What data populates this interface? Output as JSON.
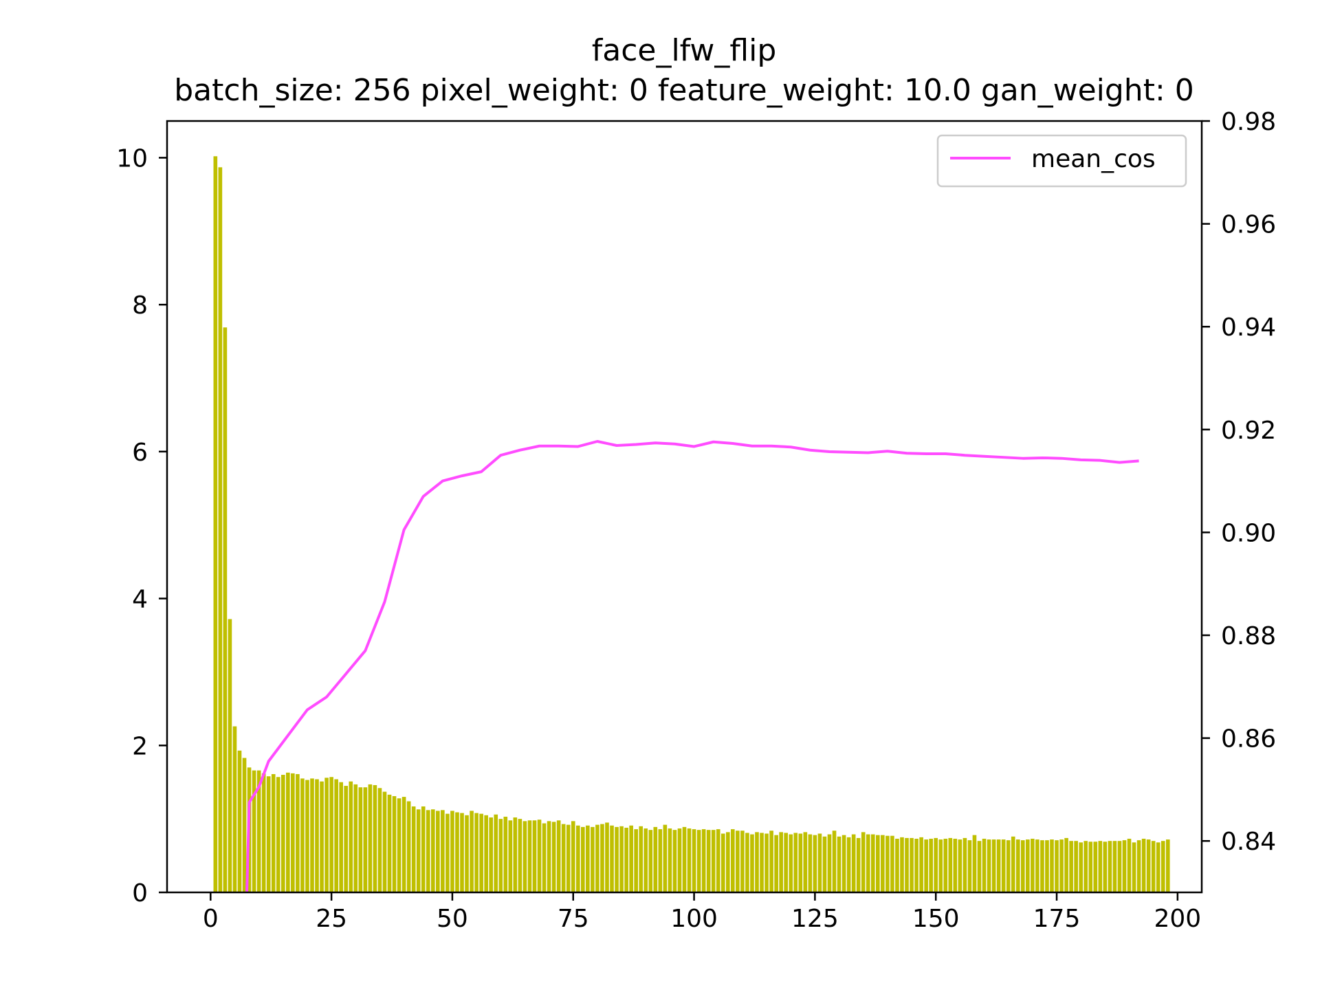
{
  "chart_data": {
    "type": "bar",
    "title": "face_lfw_flip",
    "subtitle": "batch_size: 256 pixel_weight: 0 feature_weight: 10.0 gan_weight: 0",
    "xlabel": "",
    "ylabel": "",
    "xlim": [
      -9,
      205
    ],
    "ylim_left": [
      0,
      10.5
    ],
    "ylim_right": [
      0.83,
      0.98
    ],
    "x_ticks": [
      0,
      25,
      50,
      75,
      100,
      125,
      150,
      175,
      200
    ],
    "y_ticks_left": [
      0,
      2,
      4,
      6,
      8,
      10
    ],
    "y_ticks_right": [
      0.84,
      0.86,
      0.88,
      0.9,
      0.92,
      0.94,
      0.96,
      0.98
    ],
    "grid": false,
    "legend_position": "top-right",
    "bar_series": {
      "axis": "left",
      "color": "#bfbf00",
      "x_start": 1,
      "x_step": 1,
      "values": [
        10.02,
        9.87,
        7.69,
        3.72,
        2.26,
        1.93,
        1.83,
        1.7,
        1.66,
        1.66,
        1.62,
        1.58,
        1.61,
        1.57,
        1.6,
        1.63,
        1.62,
        1.61,
        1.55,
        1.53,
        1.55,
        1.54,
        1.51,
        1.56,
        1.57,
        1.54,
        1.5,
        1.45,
        1.51,
        1.47,
        1.43,
        1.43,
        1.47,
        1.46,
        1.42,
        1.37,
        1.33,
        1.31,
        1.28,
        1.3,
        1.24,
        1.17,
        1.13,
        1.17,
        1.12,
        1.13,
        1.11,
        1.12,
        1.07,
        1.11,
        1.09,
        1.08,
        1.05,
        1.11,
        1.08,
        1.07,
        1.05,
        1.02,
        1.06,
        1.0,
        1.03,
        0.98,
        1.02,
        1.0,
        0.97,
        0.98,
        0.98,
        0.99,
        0.94,
        0.97,
        0.96,
        0.98,
        0.93,
        0.92,
        0.97,
        0.91,
        0.89,
        0.91,
        0.89,
        0.92,
        0.93,
        0.95,
        0.91,
        0.89,
        0.9,
        0.88,
        0.91,
        0.86,
        0.9,
        0.87,
        0.85,
        0.89,
        0.86,
        0.92,
        0.87,
        0.85,
        0.87,
        0.89,
        0.87,
        0.86,
        0.85,
        0.86,
        0.85,
        0.85,
        0.86,
        0.8,
        0.82,
        0.86,
        0.84,
        0.84,
        0.81,
        0.79,
        0.82,
        0.81,
        0.8,
        0.84,
        0.78,
        0.82,
        0.81,
        0.79,
        0.81,
        0.8,
        0.82,
        0.79,
        0.78,
        0.8,
        0.76,
        0.79,
        0.84,
        0.76,
        0.78,
        0.75,
        0.79,
        0.74,
        0.82,
        0.79,
        0.79,
        0.78,
        0.78,
        0.77,
        0.77,
        0.73,
        0.75,
        0.74,
        0.74,
        0.73,
        0.75,
        0.72,
        0.73,
        0.74,
        0.72,
        0.73,
        0.74,
        0.73,
        0.72,
        0.74,
        0.71,
        0.78,
        0.7,
        0.73,
        0.72,
        0.72,
        0.72,
        0.72,
        0.71,
        0.76,
        0.72,
        0.71,
        0.72,
        0.73,
        0.72,
        0.71,
        0.71,
        0.72,
        0.71,
        0.72,
        0.74,
        0.7,
        0.7,
        0.68,
        0.7,
        0.69,
        0.69,
        0.7,
        0.69,
        0.7,
        0.7,
        0.7,
        0.71,
        0.73,
        0.68,
        0.71,
        0.73,
        0.72,
        0.7,
        0.68,
        0.7,
        0.72
      ]
    },
    "series": [
      {
        "name": "mean_cos",
        "axis": "right",
        "color": "#ff4cff",
        "x": [
          7.5,
          8,
          10,
          12,
          16,
          20,
          24,
          28,
          32,
          36,
          40,
          44,
          48,
          52,
          56,
          60,
          64,
          68,
          72,
          76,
          80,
          84,
          88,
          92,
          96,
          100,
          104,
          108,
          112,
          116,
          120,
          124,
          128,
          132,
          136,
          140,
          144,
          148,
          152,
          156,
          160,
          164,
          168,
          172,
          176,
          180,
          184,
          188,
          192
        ],
        "values": [
          0.83,
          0.8475,
          0.8505,
          0.8555,
          0.8605,
          0.8655,
          0.868,
          0.8725,
          0.877,
          0.8865,
          0.9005,
          0.907,
          0.91,
          0.911,
          0.9118,
          0.915,
          0.916,
          0.9168,
          0.9168,
          0.9167,
          0.9177,
          0.9169,
          0.9171,
          0.9174,
          0.9172,
          0.9167,
          0.9176,
          0.9173,
          0.9168,
          0.9168,
          0.9166,
          0.916,
          0.9157,
          0.9156,
          0.9155,
          0.9158,
          0.9154,
          0.9153,
          0.9153,
          0.915,
          0.9148,
          0.9146,
          0.9144,
          0.9145,
          0.9144,
          0.9141,
          0.914,
          0.9136,
          0.9139
        ]
      }
    ]
  }
}
